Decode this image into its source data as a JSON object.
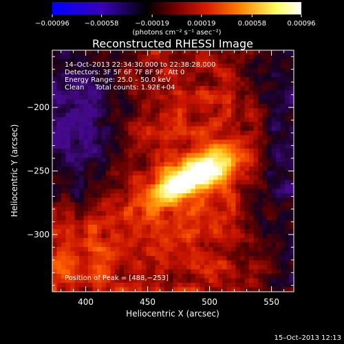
{
  "chart_data": {
    "type": "heatmap",
    "title": "Reconstructed RHESSI Image",
    "xlabel": "Heliocentric X (arcsec)",
    "ylabel": "Heliocentric Y (arcsec)",
    "xlim": [
      373,
      568
    ],
    "ylim": [
      -345,
      -155
    ],
    "x_ticks": [
      400,
      450,
      500,
      550
    ],
    "x_tick_labels": [
      "400",
      "450",
      "500",
      "550"
    ],
    "y_ticks": [
      -200,
      -250,
      -300
    ],
    "y_tick_labels": [
      "−200",
      "−250",
      "−300"
    ],
    "colorbar": {
      "min": -0.00096,
      "max": 0.00096,
      "ticks": [
        -0.00096,
        -0.00058,
        -0.00019,
        0.00019,
        0.00058,
        0.00096
      ],
      "tick_labels": [
        "−0.00096",
        "−0.00058",
        "−0.00019",
        "0.00019",
        "0.00058",
        "0.00096"
      ],
      "units": "(photons cm⁻² s⁻¹ asec⁻²)",
      "colors": [
        "#0000ff",
        "#3a00b8",
        "#000000",
        "#7a0000",
        "#d81c00",
        "#ff7f00",
        "#ffff60",
        "#ffffff"
      ]
    },
    "annotations": [
      "14–Oct–2013 22:34:30.000 to 22:38:28.000",
      "Detectors: 3F 5F 6F 7F 8F 9F, Att 0",
      "Energy Range: 25.0 – 50.0 keV",
      "Clean     Total counts: 1.92E+04"
    ],
    "peak": {
      "x": 488,
      "y": -253
    },
    "peak_label": "Position of Peak = [488,−253]",
    "timestamp": "15–Oct–2013 12:13"
  }
}
